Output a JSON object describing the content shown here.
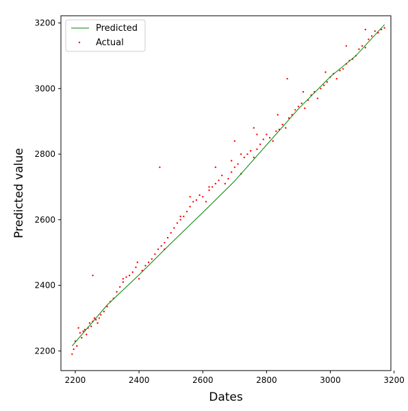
{
  "chart_data": {
    "type": "scatter",
    "xlabel": "Dates",
    "ylabel": "Predicted value",
    "xlim": [
      2155,
      3190
    ],
    "ylim": [
      2140,
      3222
    ],
    "x_ticks": [
      2200,
      2400,
      2600,
      2800,
      3000,
      3200
    ],
    "y_ticks": [
      2200,
      2400,
      2600,
      2800,
      3000,
      3200
    ],
    "grid": false,
    "legend_position": "top-left",
    "series": [
      {
        "name": "Predicted",
        "kind": "line",
        "color": "#008000",
        "x": [
          2190,
          2300,
          2400,
          2500,
          2600,
          2700,
          2800,
          2900,
          3000,
          3080,
          3170
        ],
        "y": [
          2215,
          2340,
          2432,
          2528,
          2622,
          2718,
          2828,
          2938,
          3036,
          3100,
          3195
        ]
      },
      {
        "name": "Actual",
        "kind": "scatter",
        "color": "#ff0000",
        "x": [
          2190,
          2195,
          2200,
          2205,
          2210,
          2215,
          2220,
          2225,
          2230,
          2235,
          2240,
          2245,
          2250,
          2255,
          2260,
          2265,
          2270,
          2275,
          2280,
          2290,
          2300,
          2310,
          2320,
          2330,
          2340,
          2350,
          2360,
          2370,
          2380,
          2390,
          2400,
          2410,
          2420,
          2430,
          2440,
          2450,
          2460,
          2470,
          2480,
          2490,
          2500,
          2510,
          2520,
          2530,
          2540,
          2550,
          2560,
          2570,
          2580,
          2590,
          2600,
          2610,
          2620,
          2630,
          2640,
          2650,
          2660,
          2670,
          2680,
          2690,
          2700,
          2710,
          2720,
          2730,
          2740,
          2750,
          2760,
          2770,
          2780,
          2790,
          2800,
          2810,
          2820,
          2830,
          2840,
          2850,
          2860,
          2870,
          2880,
          2890,
          2900,
          2910,
          2920,
          2930,
          2940,
          2950,
          2960,
          2970,
          2980,
          2990,
          3000,
          3010,
          3020,
          3030,
          3040,
          3050,
          3060,
          3070,
          3080,
          3090,
          3100,
          3110,
          3120,
          3130,
          3140,
          3150,
          3160,
          3170,
          2255,
          2465,
          2395,
          2530,
          2620,
          2690,
          2770,
          2835,
          2865,
          2915,
          2985,
          3050,
          3110,
          2560,
          2700,
          2760,
          2640,
          2480,
          2350,
          2720
        ],
        "y": [
          2190,
          2205,
          2230,
          2215,
          2270,
          2255,
          2240,
          2260,
          2265,
          2250,
          2270,
          2285,
          2275,
          2290,
          2300,
          2295,
          2285,
          2300,
          2310,
          2320,
          2335,
          2350,
          2360,
          2380,
          2395,
          2410,
          2425,
          2430,
          2440,
          2455,
          2420,
          2445,
          2460,
          2470,
          2480,
          2495,
          2510,
          2520,
          2530,
          2545,
          2560,
          2575,
          2590,
          2600,
          2610,
          2625,
          2640,
          2655,
          2660,
          2675,
          2670,
          2655,
          2690,
          2700,
          2710,
          2720,
          2735,
          2710,
          2725,
          2745,
          2760,
          2770,
          2740,
          2790,
          2800,
          2810,
          2790,
          2815,
          2830,
          2845,
          2860,
          2850,
          2840,
          2870,
          2875,
          2890,
          2880,
          2910,
          2920,
          2935,
          2945,
          2955,
          2940,
          2965,
          2980,
          2990,
          2970,
          3000,
          3010,
          3020,
          3035,
          3045,
          3030,
          3055,
          3060,
          3075,
          3085,
          3090,
          3100,
          3120,
          3130,
          3125,
          3150,
          3160,
          3175,
          3170,
          3180,
          3185,
          2430,
          2760,
          2470,
          2610,
          2700,
          2780,
          2860,
          2920,
          3030,
          2990,
          3050,
          3130,
          3180,
          2670,
          2840,
          2880,
          2760,
          2510,
          2420,
          2800
        ]
      }
    ]
  }
}
